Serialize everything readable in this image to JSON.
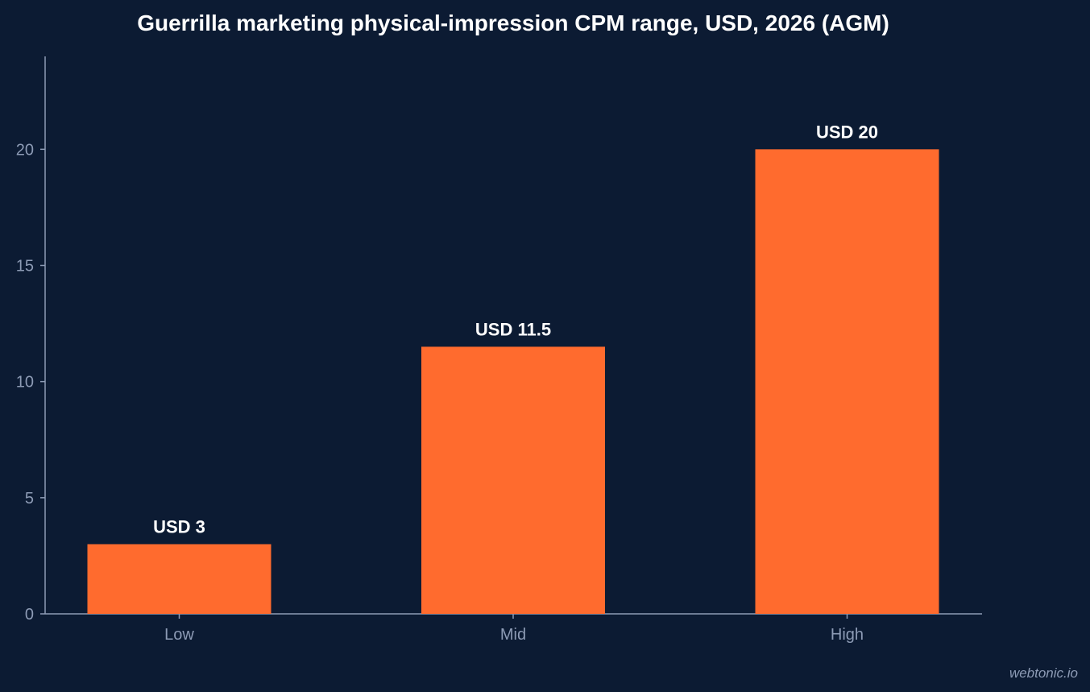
{
  "chart_data": {
    "type": "bar",
    "title": "Guerrilla marketing physical-impression CPM range, USD, 2026 (AGM)",
    "xlabel": "",
    "ylabel": "",
    "categories": [
      "Low",
      "Mid",
      "High"
    ],
    "values": [
      3,
      11.5,
      20
    ],
    "data_labels": [
      "USD 3",
      "USD 11.5",
      "USD 20"
    ],
    "ylim": [
      0,
      24
    ],
    "y_ticks": [
      0,
      5,
      10,
      15,
      20
    ],
    "grid": false,
    "legend": "none",
    "colors": {
      "background": "#0c1b33",
      "bar": "#ff6b2e",
      "axis": "#8d9bb5",
      "text": "#ffffff"
    }
  },
  "watermark": "webtonic.io"
}
